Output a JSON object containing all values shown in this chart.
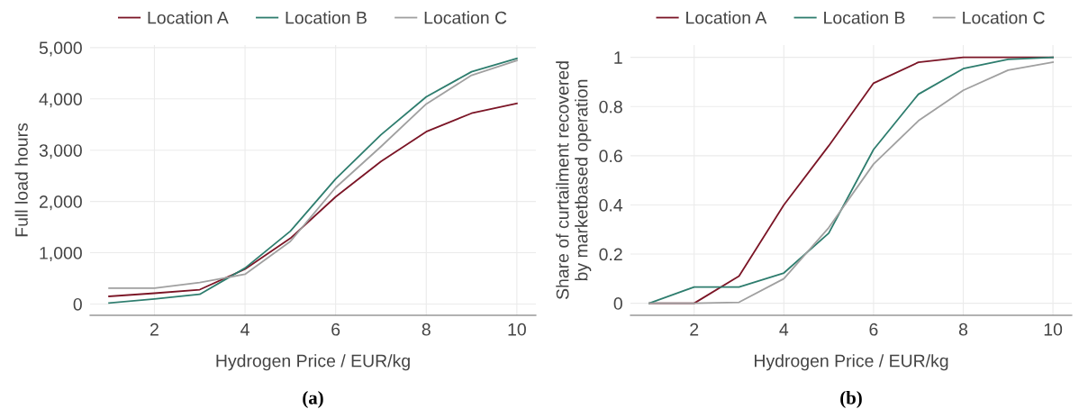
{
  "chart_data": [
    {
      "type": "line",
      "xlabel": "Hydrogen Price / EUR/kg",
      "ylabel": "Full load hours",
      "annotations": [
        "(a)"
      ],
      "x": [
        1,
        2,
        3,
        4,
        5,
        6,
        7,
        8,
        9,
        10
      ],
      "series": [
        {
          "name": "Location A",
          "color": "#7b1526",
          "values": [
            150,
            210,
            280,
            680,
            1280,
            2090,
            2780,
            3360,
            3720,
            3910
          ]
        },
        {
          "name": "Location B",
          "color": "#2e7d6e",
          "values": [
            20,
            100,
            190,
            700,
            1420,
            2440,
            3300,
            4040,
            4530,
            4790
          ]
        },
        {
          "name": "Location C",
          "color": "#a0a0a0",
          "values": [
            310,
            310,
            420,
            580,
            1220,
            2270,
            3070,
            3900,
            4460,
            4750
          ]
        }
      ],
      "xlim": [
        0.58,
        10.42
      ],
      "xticks": [
        2,
        4,
        6,
        8,
        10
      ],
      "ylim": [
        -220,
        5050
      ],
      "yticks": [
        0,
        {
          "value": 1000,
          "label": "1,000"
        },
        {
          "value": 2000,
          "label": "2,000"
        },
        {
          "value": 3000,
          "label": "3,000"
        },
        {
          "value": 4000,
          "label": "4,000"
        },
        {
          "value": 5000,
          "label": "5,000"
        }
      ],
      "grid": true,
      "legend": "top",
      "marker": "none",
      "line_style": "solid"
    },
    {
      "type": "line",
      "xlabel": "Hydrogen Price / EUR/kg",
      "ylabel": "Share of curtailment recovered\nby marketbased operation",
      "annotations": [
        "(b)"
      ],
      "x": [
        1,
        2,
        3,
        4,
        5,
        6,
        7,
        8,
        9,
        10
      ],
      "series": [
        {
          "name": "Location A",
          "color": "#7b1526",
          "values": [
            0,
            0,
            0.11,
            0.4,
            0.64,
            0.895,
            0.98,
            1.0,
            1.0,
            1.0
          ]
        },
        {
          "name": "Location B",
          "color": "#2e7d6e",
          "values": [
            0,
            0.066,
            0.066,
            0.123,
            0.285,
            0.625,
            0.85,
            0.954,
            0.992,
            1.0
          ]
        },
        {
          "name": "Location C",
          "color": "#a0a0a0",
          "values": [
            0,
            0,
            0.004,
            0.1,
            0.307,
            0.566,
            0.742,
            0.866,
            0.948,
            0.98
          ]
        }
      ],
      "xlim": [
        0.58,
        10.42
      ],
      "xticks": [
        2,
        4,
        6,
        8,
        10
      ],
      "ylim": [
        -0.049,
        1.05
      ],
      "yticks": [
        0,
        0.2,
        0.4,
        0.6,
        0.8,
        1
      ],
      "grid": true,
      "legend": "top",
      "marker": "none",
      "line_style": "solid"
    }
  ]
}
